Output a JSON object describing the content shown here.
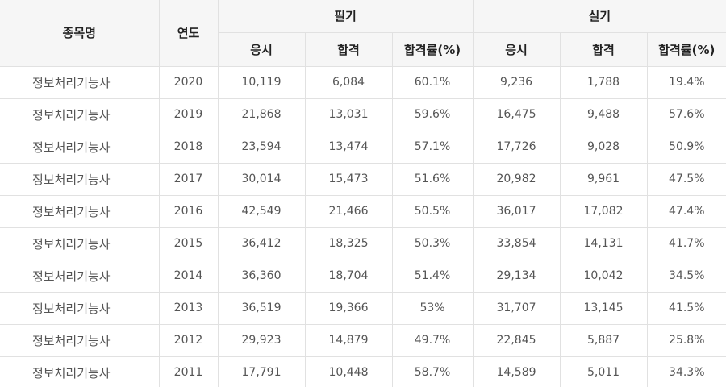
{
  "table": {
    "headers": {
      "name": "종목명",
      "year": "연도",
      "written": "필기",
      "practical": "실기",
      "sub": [
        "응시",
        "합격",
        "합격률(%)",
        "응시",
        "합격",
        "합격률(%)"
      ]
    },
    "rows": [
      {
        "name": "정보처리기능사",
        "year": "2020",
        "w_apply": "10,119",
        "w_pass": "6,084",
        "w_rate": "60.1%",
        "p_apply": "9,236",
        "p_pass": "1,788",
        "p_rate": "19.4%"
      },
      {
        "name": "정보처리기능사",
        "year": "2019",
        "w_apply": "21,868",
        "w_pass": "13,031",
        "w_rate": "59.6%",
        "p_apply": "16,475",
        "p_pass": "9,488",
        "p_rate": "57.6%"
      },
      {
        "name": "정보처리기능사",
        "year": "2018",
        "w_apply": "23,594",
        "w_pass": "13,474",
        "w_rate": "57.1%",
        "p_apply": "17,726",
        "p_pass": "9,028",
        "p_rate": "50.9%"
      },
      {
        "name": "정보처리기능사",
        "year": "2017",
        "w_apply": "30,014",
        "w_pass": "15,473",
        "w_rate": "51.6%",
        "p_apply": "20,982",
        "p_pass": "9,961",
        "p_rate": "47.5%"
      },
      {
        "name": "정보처리기능사",
        "year": "2016",
        "w_apply": "42,549",
        "w_pass": "21,466",
        "w_rate": "50.5%",
        "p_apply": "36,017",
        "p_pass": "17,082",
        "p_rate": "47.4%"
      },
      {
        "name": "정보처리기능사",
        "year": "2015",
        "w_apply": "36,412",
        "w_pass": "18,325",
        "w_rate": "50.3%",
        "p_apply": "33,854",
        "p_pass": "14,131",
        "p_rate": "41.7%"
      },
      {
        "name": "정보처리기능사",
        "year": "2014",
        "w_apply": "36,360",
        "w_pass": "18,704",
        "w_rate": "51.4%",
        "p_apply": "29,134",
        "p_pass": "10,042",
        "p_rate": "34.5%"
      },
      {
        "name": "정보처리기능사",
        "year": "2013",
        "w_apply": "36,519",
        "w_pass": "19,366",
        "w_rate": "53%",
        "p_apply": "31,707",
        "p_pass": "13,145",
        "p_rate": "41.5%"
      },
      {
        "name": "정보처리기능사",
        "year": "2012",
        "w_apply": "29,923",
        "w_pass": "14,879",
        "w_rate": "49.7%",
        "p_apply": "22,845",
        "p_pass": "5,887",
        "p_rate": "25.8%"
      },
      {
        "name": "정보처리기능사",
        "year": "2011",
        "w_apply": "17,791",
        "w_pass": "10,448",
        "w_rate": "58.7%",
        "p_apply": "14,589",
        "p_pass": "5,011",
        "p_rate": "34.3%"
      }
    ]
  }
}
